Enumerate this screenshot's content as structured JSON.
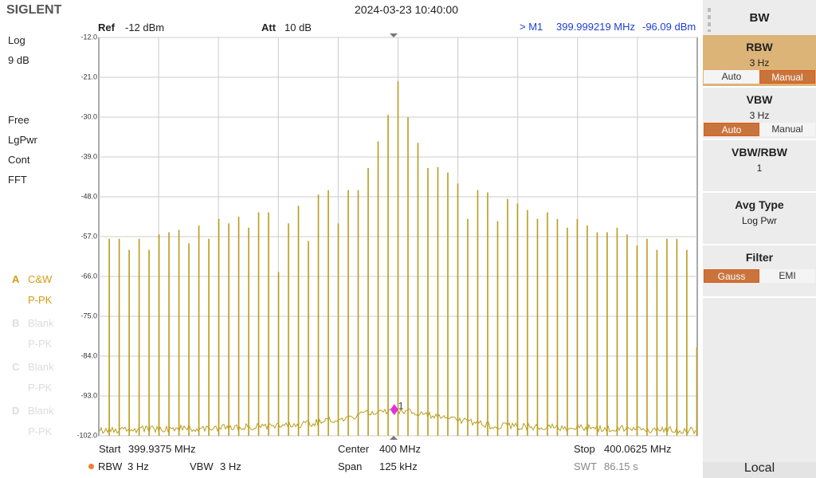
{
  "header": {
    "logo": "SIGLENT",
    "datetime": "2024-03-23 10:40:00",
    "ref_label": "Ref",
    "ref_value": "-12 dBm",
    "att_label": "Att",
    "att_value": "10 dB",
    "marker_name": "> M1",
    "marker_freq": "399.999219 MHz",
    "marker_level": "-96.09 dBm"
  },
  "left_panel": {
    "scale": "Log",
    "scale_div": "9 dB",
    "trigger": "Free",
    "detector": "LgPwr",
    "sweep": "Cont",
    "mode": "FFT",
    "traces": [
      {
        "letter": "A",
        "type": "C&W",
        "detector": "P-PK",
        "active": true
      },
      {
        "letter": "B",
        "type": "Blank",
        "detector": "P-PK",
        "active": false
      },
      {
        "letter": "C",
        "type": "Blank",
        "detector": "P-PK",
        "active": false
      },
      {
        "letter": "D",
        "type": "Blank",
        "detector": "P-PK",
        "active": false
      }
    ]
  },
  "chart_data": {
    "type": "spectrum",
    "xlim": [
      399.9375,
      400.0625
    ],
    "ylim": [
      -102,
      -12
    ],
    "yticks": [
      {
        "value": -12,
        "label": "-12.0"
      },
      {
        "value": -21,
        "label": "-21.0"
      },
      {
        "value": -30,
        "label": "-30.0"
      },
      {
        "value": -39,
        "label": "-39.0"
      },
      {
        "value": -48,
        "label": "-48.0"
      },
      {
        "value": -57,
        "label": "-57.0"
      },
      {
        "value": -66,
        "label": "-66.0"
      },
      {
        "value": -75,
        "label": "-75.0"
      },
      {
        "value": -84,
        "label": "-84.0"
      },
      {
        "value": -93,
        "label": "-93.0"
      },
      {
        "value": -102,
        "label": "-102.0"
      }
    ],
    "grid": true,
    "color": "#b89c1c",
    "x": [
      399.93968,
      399.94176,
      399.94384,
      399.94592,
      399.948,
      399.95008,
      399.95216,
      399.95424,
      399.95632,
      399.9584,
      399.96048,
      399.96256,
      399.96464,
      399.96672,
      399.9688,
      399.97088,
      399.97296,
      399.97504,
      399.97712,
      399.9792,
      399.98128,
      399.98336,
      399.98544,
      399.98752,
      399.9896,
      399.99168,
      399.99376,
      399.99584,
      399.99792,
      400,
      400.00208,
      400.00416,
      400.00624,
      400.00832,
      400.0104,
      400.01248,
      400.01456,
      400.01664,
      400.01872,
      400.0208,
      400.02288,
      400.02496,
      400.02704,
      400.02912,
      400.0312,
      400.03328,
      400.03536,
      400.03744,
      400.03952,
      400.0416,
      400.04368,
      400.04576,
      400.04784,
      400.04992,
      400.052,
      400.05408,
      400.05616,
      400.05824,
      400.06032,
      400.0624
    ],
    "values": [
      -57.5,
      -57.5,
      -60,
      -57.5,
      -60,
      -56.5,
      -56,
      -55.5,
      -58.5,
      -54.5,
      -57.5,
      -53,
      -54,
      -52.5,
      -55,
      -51.5,
      -51.5,
      -65,
      -54,
      -50,
      -58,
      -47.5,
      -46.5,
      -54,
      -46.5,
      -46.5,
      -41.5,
      -35.5,
      -29.5,
      -21.9,
      -30,
      -35.8,
      -41.5,
      -41.3,
      -42.5,
      -45,
      -53,
      -46.5,
      -47,
      -53.5,
      -48.5,
      -49.5,
      -51,
      -53,
      -51.5,
      -53,
      -55,
      -53,
      -54.5,
      -56,
      -56,
      -55,
      -56.5,
      -59,
      -57.5,
      -60,
      -57.5,
      -57.5,
      -60,
      -82
    ],
    "marker": {
      "label": "1",
      "x": 399.999219,
      "y": -96.09,
      "color": "#e030e0"
    }
  },
  "footer": {
    "start_label": "Start",
    "start_value": "399.9375 MHz",
    "center_label": "Center",
    "center_value": "400 MHz",
    "stop_label": "Stop",
    "stop_value": "400.0625 MHz",
    "rbw_label": "RBW",
    "rbw_value": "3 Hz",
    "vbw_label": "VBW",
    "vbw_value": "3 Hz",
    "span_label": "Span",
    "span_value": "125 kHz",
    "swt_label": "SWT",
    "swt_value": "86.15 s"
  },
  "menu": {
    "title": "BW",
    "items": [
      {
        "name": "RBW",
        "value": "3 Hz",
        "options": [
          "Auto",
          "Manual"
        ],
        "selected": 1,
        "active": true
      },
      {
        "name": "VBW",
        "value": "3 Hz",
        "options": [
          "Auto",
          "Manual"
        ],
        "selected": 0,
        "active": false
      },
      {
        "name": "VBW/RBW",
        "value": "1",
        "active": false
      },
      {
        "name": "Avg Type",
        "value": "Log Pwr",
        "active": false
      },
      {
        "name": "Filter",
        "options": [
          "Gauss",
          "EMI"
        ],
        "selected": 0,
        "active": false
      }
    ],
    "status": "Local"
  }
}
